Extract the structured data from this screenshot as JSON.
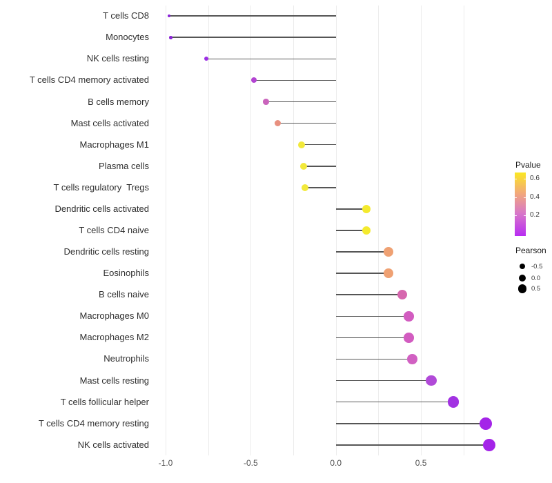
{
  "chart_data": {
    "type": "lollipop",
    "orientation": "horizontal",
    "title": "",
    "xlabel": "",
    "ylabel": "",
    "x_axis_tick_labels": [
      "-1.0",
      "-0.5",
      "0.0",
      "0.5"
    ],
    "x_axis_tick_values": [
      -1.0,
      -0.5,
      0.0,
      0.5
    ],
    "x_range": [
      -1.06,
      0.99
    ],
    "grid_step": 0.25,
    "grid_on": true,
    "points": [
      {
        "label": "T cells CD8",
        "pearson": -0.98,
        "pvalue_approx": 0.01,
        "color": "#8a23d6"
      },
      {
        "label": "Monocytes",
        "pearson": -0.97,
        "pvalue_approx": 0.01,
        "color": "#8a23d6"
      },
      {
        "label": "NK cells resting",
        "pearson": -0.76,
        "pvalue_approx": 0.05,
        "color": "#9b2de4"
      },
      {
        "label": "T cells CD4 memory activated",
        "pearson": -0.48,
        "pvalue_approx": 0.15,
        "color": "#b344d2"
      },
      {
        "label": "B cells memory",
        "pearson": -0.41,
        "pvalue_approx": 0.25,
        "color": "#ca64bc"
      },
      {
        "label": "Mast cells activated",
        "pearson": -0.34,
        "pvalue_approx": 0.38,
        "color": "#e8907f"
      },
      {
        "label": "Macrophages M1",
        "pearson": -0.2,
        "pvalue_approx": 0.57,
        "color": "#f2e93b"
      },
      {
        "label": "Plasma cells",
        "pearson": -0.19,
        "pvalue_approx": 0.57,
        "color": "#f2e93b"
      },
      {
        "label": "T cells regulatory  Tregs",
        "pearson": -0.18,
        "pvalue_approx": 0.57,
        "color": "#f2e93b"
      },
      {
        "label": "Dendritic cells activated",
        "pearson": 0.18,
        "pvalue_approx": 0.6,
        "color": "#f4ea2e"
      },
      {
        "label": "T cells CD4 naive",
        "pearson": 0.18,
        "pvalue_approx": 0.6,
        "color": "#f4ea2e"
      },
      {
        "label": "Dendritic cells resting",
        "pearson": 0.31,
        "pvalue_approx": 0.4,
        "color": "#efa173"
      },
      {
        "label": "Eosinophils",
        "pearson": 0.31,
        "pvalue_approx": 0.4,
        "color": "#efa173"
      },
      {
        "label": "B cells naive",
        "pearson": 0.39,
        "pvalue_approx": 0.27,
        "color": "#d667ae"
      },
      {
        "label": "Macrophages M0",
        "pearson": 0.43,
        "pvalue_approx": 0.24,
        "color": "#d25cc0"
      },
      {
        "label": "Macrophages M2",
        "pearson": 0.43,
        "pvalue_approx": 0.24,
        "color": "#d25cc0"
      },
      {
        "label": "Neutrophils",
        "pearson": 0.45,
        "pvalue_approx": 0.24,
        "color": "#d160c2"
      },
      {
        "label": "Mast cells resting",
        "pearson": 0.56,
        "pvalue_approx": 0.12,
        "color": "#b14ad8"
      },
      {
        "label": "T cells follicular helper",
        "pearson": 0.69,
        "pvalue_approx": 0.06,
        "color": "#a232e2"
      },
      {
        "label": "T cells CD4 memory resting",
        "pearson": 0.88,
        "pvalue_approx": 0.02,
        "color": "#a424e8"
      },
      {
        "label": "NK cells activated",
        "pearson": 0.9,
        "pvalue_approx": 0.02,
        "color": "#a424e8"
      }
    ],
    "legend_pvalue": {
      "title": "Pvalue",
      "tick_labels": [
        "0.6",
        "0.4",
        "0.2"
      ],
      "gradient_top_to_bottom": [
        "#fbe723",
        "#f2a87b",
        "#d878c8",
        "#b82df2"
      ]
    },
    "legend_pearson": {
      "title": "Pearson",
      "items": [
        {
          "label": "-0.5",
          "diameter": 8
        },
        {
          "label": "0.0",
          "diameter": 10.5
        },
        {
          "label": "0.5",
          "diameter": 12.5
        }
      ]
    }
  },
  "colors": {
    "stem": "#555555",
    "grid": "#ececec",
    "axis_text": "#4d4d4d",
    "label_text": "#2e2e2e",
    "legend_dot": "#000000"
  }
}
